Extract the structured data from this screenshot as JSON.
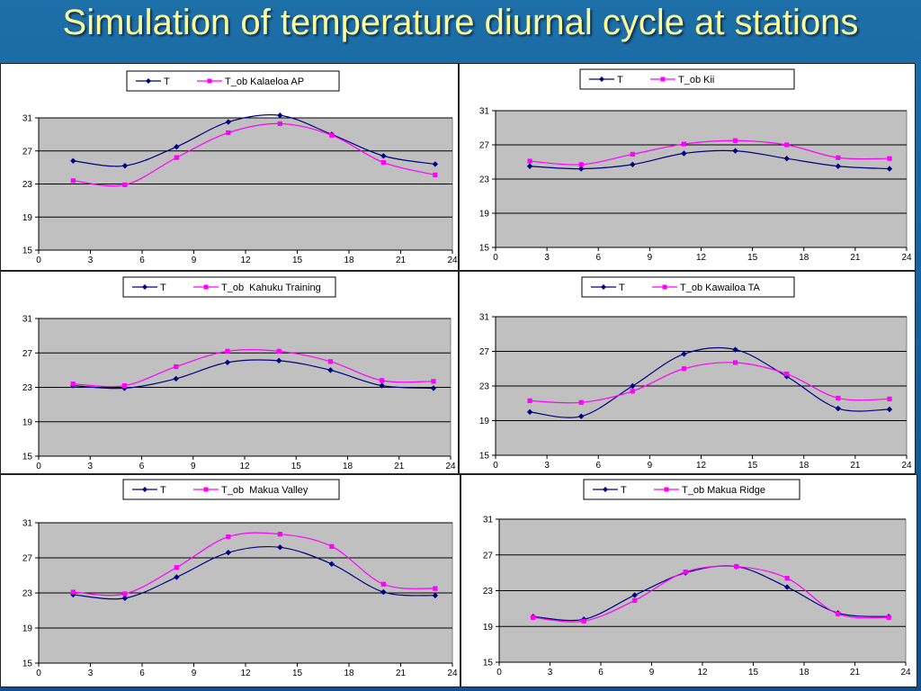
{
  "slide": {
    "title": "Simulation of temperature diurnal cycle at stations",
    "colors": {
      "background": "#1d6fa8",
      "title": "#ffff99",
      "series_T": "#000080",
      "series_T_ob": "#ff00ff",
      "plot_bg": "#c0c0c0"
    }
  },
  "chart_data": [
    {
      "type": "line",
      "x": [
        2,
        5,
        8,
        11,
        14,
        17,
        20,
        23
      ],
      "xlim": [
        0,
        24
      ],
      "ylim": [
        15,
        31
      ],
      "xticks": [
        0,
        3,
        6,
        9,
        12,
        15,
        18,
        21,
        24
      ],
      "yticks": [
        15,
        19,
        23,
        27,
        31
      ],
      "grid": true,
      "legend": "top",
      "series": [
        {
          "name": "T",
          "color": "#000080",
          "marker": "diamond",
          "values": [
            25.8,
            25.2,
            27.5,
            30.5,
            31.3,
            29.0,
            26.4,
            25.4
          ]
        },
        {
          "name": "T_ob Kalaeloa AP",
          "color": "#ff00ff",
          "marker": "square",
          "values": [
            23.4,
            22.9,
            26.2,
            29.2,
            30.3,
            28.9,
            25.6,
            24.1
          ]
        }
      ]
    },
    {
      "type": "line",
      "x": [
        2,
        5,
        8,
        11,
        14,
        17,
        20,
        23
      ],
      "xlim": [
        0,
        24
      ],
      "ylim": [
        15,
        31
      ],
      "xticks": [
        0,
        3,
        6,
        9,
        12,
        15,
        18,
        21,
        24
      ],
      "yticks": [
        15,
        19,
        23,
        27,
        31
      ],
      "grid": true,
      "legend": "top",
      "series": [
        {
          "name": "T",
          "color": "#000080",
          "marker": "diamond",
          "values": [
            24.5,
            24.2,
            24.7,
            26.0,
            26.3,
            25.4,
            24.5,
            24.2
          ]
        },
        {
          "name": "T_ob Kii",
          "color": "#ff00ff",
          "marker": "square",
          "values": [
            25.1,
            24.7,
            25.9,
            27.1,
            27.5,
            27.0,
            25.5,
            25.4
          ]
        }
      ]
    },
    {
      "type": "line",
      "x": [
        2,
        5,
        8,
        11,
        14,
        17,
        20,
        23
      ],
      "xlim": [
        0,
        24
      ],
      "ylim": [
        15,
        31
      ],
      "xticks": [
        0,
        3,
        6,
        9,
        12,
        15,
        18,
        21,
        24
      ],
      "yticks": [
        15,
        19,
        23,
        27,
        31
      ],
      "grid": true,
      "legend": "top",
      "series": [
        {
          "name": "T",
          "color": "#000080",
          "marker": "diamond",
          "values": [
            23.2,
            22.9,
            24.0,
            25.9,
            26.1,
            25.0,
            23.2,
            22.9
          ]
        },
        {
          "name": "T_ob  Kahuku Training",
          "color": "#ff00ff",
          "marker": "square",
          "values": [
            23.4,
            23.2,
            25.4,
            27.2,
            27.2,
            26.0,
            23.8,
            23.7
          ]
        }
      ]
    },
    {
      "type": "line",
      "x": [
        2,
        5,
        8,
        11,
        14,
        17,
        20,
        23
      ],
      "xlim": [
        0,
        24
      ],
      "ylim": [
        15,
        31
      ],
      "xticks": [
        0,
        3,
        6,
        9,
        12,
        15,
        18,
        21,
        24
      ],
      "yticks": [
        15,
        19,
        23,
        27,
        31
      ],
      "grid": true,
      "legend": "top",
      "series": [
        {
          "name": "T",
          "color": "#000080",
          "marker": "diamond",
          "values": [
            20.0,
            19.5,
            23.0,
            26.7,
            27.2,
            24.1,
            20.4,
            20.3
          ]
        },
        {
          "name": "T_ob Kawailoa TA",
          "color": "#ff00ff",
          "marker": "square",
          "values": [
            21.3,
            21.1,
            22.4,
            25.0,
            25.7,
            24.4,
            21.6,
            21.5
          ]
        }
      ]
    },
    {
      "type": "line",
      "x": [
        2,
        5,
        8,
        11,
        14,
        17,
        20,
        23
      ],
      "xlim": [
        0,
        24
      ],
      "ylim": [
        15,
        31
      ],
      "xticks": [
        0,
        3,
        6,
        9,
        12,
        15,
        18,
        21,
        24
      ],
      "yticks": [
        15,
        19,
        23,
        27,
        31
      ],
      "grid": true,
      "legend": "top",
      "series": [
        {
          "name": "T",
          "color": "#000080",
          "marker": "diamond",
          "values": [
            22.8,
            22.4,
            24.8,
            27.6,
            28.2,
            26.3,
            23.1,
            22.7
          ]
        },
        {
          "name": "T_ob  Makua Valley",
          "color": "#ff00ff",
          "marker": "square",
          "values": [
            23.1,
            22.9,
            25.9,
            29.4,
            29.7,
            28.3,
            24.0,
            23.5
          ]
        }
      ]
    },
    {
      "type": "line",
      "x": [
        2,
        5,
        8,
        11,
        14,
        17,
        20,
        23
      ],
      "xlim": [
        0,
        24
      ],
      "ylim": [
        15,
        31
      ],
      "xticks": [
        0,
        3,
        6,
        9,
        12,
        15,
        18,
        21,
        24
      ],
      "yticks": [
        15,
        19,
        23,
        27,
        31
      ],
      "grid": true,
      "legend": "top",
      "series": [
        {
          "name": "T",
          "color": "#000080",
          "marker": "diamond",
          "values": [
            20.1,
            19.8,
            22.5,
            25.0,
            25.7,
            23.4,
            20.5,
            20.1
          ]
        },
        {
          "name": "T_ob Makua Ridge",
          "color": "#ff00ff",
          "marker": "square",
          "values": [
            20.0,
            19.6,
            21.9,
            25.1,
            25.7,
            24.4,
            20.4,
            20.0
          ]
        }
      ]
    }
  ]
}
